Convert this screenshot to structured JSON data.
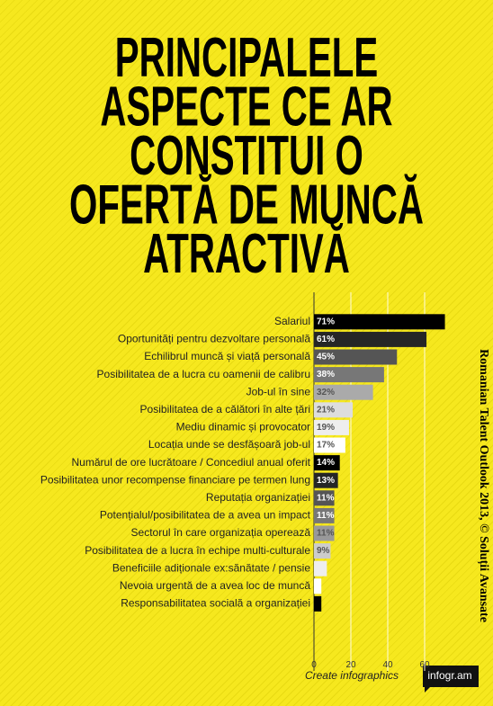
{
  "chart_data": {
    "type": "bar",
    "orientation": "horizontal",
    "title": [
      "PRINCIPALELE",
      "ASPECTE CE AR",
      "CONSTITUI O",
      "OFERTĂ DE MUNCĂ",
      "ATRACTIVĂ"
    ],
    "categories": [
      "Salariul",
      "Oportunități pentru dezvoltare personală",
      "Echilibrul muncă și viață personală",
      "Posibilitatea de a lucra cu oamenii de calibru",
      "Job-ul în sine",
      "Posibilitatea de a călători în alte țări",
      "Mediu dinamic și provocator",
      "Locația unde se desfășoară job-ul",
      "Numărul de ore lucrătoare / Concediul anual oferit",
      "Posibilitatea unor recompense financiare pe termen lung",
      "Reputația organizației",
      "Potențialul/posibilitatea de a avea un impact",
      "Sectorul în care organizația operează",
      "Posibilitatea de a lucra în echipe multi-culturale",
      "Beneficiile adiționale ex:sănătate / pensie",
      "Nevoia urgentă de a avea loc de muncă",
      "Responsabilitatea socială a organizației"
    ],
    "values": [
      71,
      61,
      45,
      38,
      32,
      21,
      19,
      17,
      14,
      13,
      11,
      11,
      11,
      9,
      7,
      4,
      4
    ],
    "value_labels": [
      "71%",
      "61%",
      "45%",
      "38%",
      "32%",
      "21%",
      "19%",
      "17%",
      "14%",
      "13%",
      "11%",
      "11%",
      "11%",
      "9%",
      null,
      null,
      null
    ],
    "colors": [
      "#000000",
      "#262626",
      "#555555",
      "#777777",
      "#aaaaaa",
      "#dddddd",
      "#eeeeee",
      "#ffffff",
      "#000000",
      "#262626",
      "#555555",
      "#777777",
      "#999999",
      "#cccccc",
      "#eeeeee",
      "#ffffff",
      "#000000"
    ],
    "xlim": [
      0,
      74
    ],
    "xticks": [
      0,
      20,
      40,
      60
    ],
    "grid": true,
    "source": "Romanian Talent Outlook 2013, © Soluții Avansate",
    "footer_text": "Create infographics",
    "footer_brand": "infogr.am"
  }
}
